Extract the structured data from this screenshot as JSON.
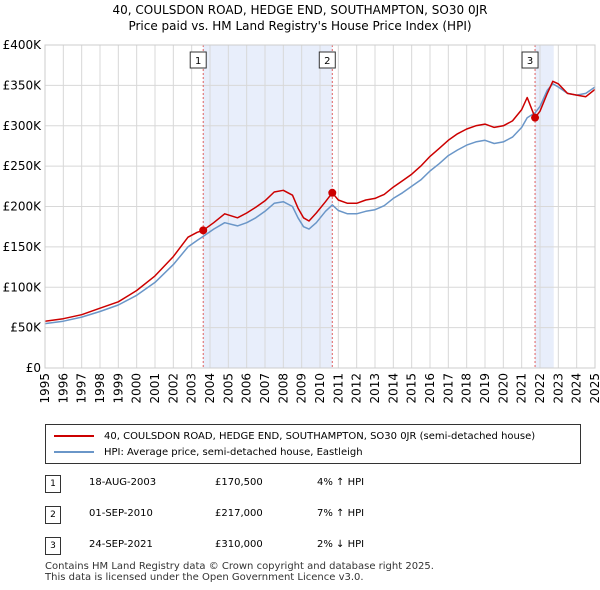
{
  "header": {
    "title": "40, COULSDON ROAD, HEDGE END, SOUTHAMPTON, SO30 0JR",
    "subtitle": "Price paid vs. HM Land Registry's House Price Index (HPI)"
  },
  "chart_data": {
    "type": "line",
    "title": "40, COULSDON ROAD, HEDGE END, SOUTHAMPTON, SO30 0JR",
    "subtitle": "Price paid vs. HM Land Registry's House Price Index (HPI)",
    "xlim": [
      1995,
      2025
    ],
    "ylim": [
      0,
      400000
    ],
    "y_ticks": [
      0,
      50000,
      100000,
      150000,
      200000,
      250000,
      300000,
      350000,
      400000
    ],
    "y_tick_labels": [
      "£0",
      "£50K",
      "£100K",
      "£150K",
      "£200K",
      "£250K",
      "£300K",
      "£350K",
      "£400K"
    ],
    "x_ticks": [
      "1995",
      "1996",
      "1997",
      "1998",
      "1999",
      "2000",
      "2001",
      "2002",
      "2003",
      "2004",
      "2005",
      "2006",
      "2007",
      "2008",
      "2009",
      "2010",
      "2011",
      "2012",
      "2013",
      "2014",
      "2015",
      "2016",
      "2017",
      "2018",
      "2019",
      "2020",
      "2021",
      "2022",
      "2023",
      "2024",
      "2025"
    ],
    "grid": true,
    "colors": {
      "price": "#cc0000",
      "hpi": "#6a96c8",
      "shade": "#e8eefb",
      "vline": "#e06060"
    },
    "series": [
      {
        "name": "40, COULSDON ROAD, HEDGE END, SOUTHAMPTON, SO30 0JR (semi-detached house)",
        "color": "#cc0000",
        "points": [
          [
            1995.0,
            58000
          ],
          [
            1996.0,
            61000
          ],
          [
            1997.0,
            66000
          ],
          [
            1998.0,
            74000
          ],
          [
            1999.0,
            82000
          ],
          [
            2000.0,
            96000
          ],
          [
            2001.0,
            114000
          ],
          [
            2002.0,
            138000
          ],
          [
            2002.8,
            162000
          ],
          [
            2003.3,
            168000
          ],
          [
            2003.63,
            170500
          ],
          [
            2004.2,
            180000
          ],
          [
            2004.8,
            191000
          ],
          [
            2005.5,
            186000
          ],
          [
            2006.0,
            192000
          ],
          [
            2006.5,
            199000
          ],
          [
            2007.0,
            207000
          ],
          [
            2007.5,
            218000
          ],
          [
            2008.0,
            220000
          ],
          [
            2008.5,
            214000
          ],
          [
            2008.8,
            198000
          ],
          [
            2009.1,
            186000
          ],
          [
            2009.4,
            182000
          ],
          [
            2009.8,
            192000
          ],
          [
            2010.3,
            206000
          ],
          [
            2010.67,
            217000
          ],
          [
            2011.0,
            208000
          ],
          [
            2011.5,
            204000
          ],
          [
            2012.0,
            204000
          ],
          [
            2012.5,
            208000
          ],
          [
            2013.0,
            210000
          ],
          [
            2013.5,
            215000
          ],
          [
            2014.0,
            224000
          ],
          [
            2014.5,
            232000
          ],
          [
            2015.0,
            240000
          ],
          [
            2015.5,
            250000
          ],
          [
            2016.0,
            262000
          ],
          [
            2016.5,
            272000
          ],
          [
            2017.0,
            282000
          ],
          [
            2017.5,
            290000
          ],
          [
            2018.0,
            296000
          ],
          [
            2018.5,
            300000
          ],
          [
            2019.0,
            302000
          ],
          [
            2019.5,
            298000
          ],
          [
            2020.0,
            300000
          ],
          [
            2020.5,
            306000
          ],
          [
            2021.0,
            320000
          ],
          [
            2021.3,
            335000
          ],
          [
            2021.73,
            310000
          ],
          [
            2022.0,
            318000
          ],
          [
            2022.4,
            340000
          ],
          [
            2022.7,
            355000
          ],
          [
            2023.0,
            352000
          ],
          [
            2023.5,
            340000
          ],
          [
            2024.0,
            338000
          ],
          [
            2024.5,
            336000
          ],
          [
            2025.0,
            345000
          ]
        ]
      },
      {
        "name": "HPI: Average price, semi-detached house, Eastleigh",
        "color": "#6a96c8",
        "points": [
          [
            1995.0,
            55000
          ],
          [
            1996.0,
            58000
          ],
          [
            1997.0,
            63000
          ],
          [
            1998.0,
            70000
          ],
          [
            1999.0,
            78000
          ],
          [
            2000.0,
            90000
          ],
          [
            2001.0,
            106000
          ],
          [
            2002.0,
            128000
          ],
          [
            2002.8,
            150000
          ],
          [
            2003.3,
            158000
          ],
          [
            2003.63,
            163000
          ],
          [
            2004.2,
            172000
          ],
          [
            2004.8,
            180000
          ],
          [
            2005.5,
            176000
          ],
          [
            2006.0,
            180000
          ],
          [
            2006.5,
            186000
          ],
          [
            2007.0,
            194000
          ],
          [
            2007.5,
            204000
          ],
          [
            2008.0,
            206000
          ],
          [
            2008.5,
            200000
          ],
          [
            2008.8,
            186000
          ],
          [
            2009.1,
            175000
          ],
          [
            2009.4,
            172000
          ],
          [
            2009.8,
            180000
          ],
          [
            2010.3,
            194000
          ],
          [
            2010.67,
            202000
          ],
          [
            2011.0,
            195000
          ],
          [
            2011.5,
            191000
          ],
          [
            2012.0,
            191000
          ],
          [
            2012.5,
            194000
          ],
          [
            2013.0,
            196000
          ],
          [
            2013.5,
            201000
          ],
          [
            2014.0,
            210000
          ],
          [
            2014.5,
            217000
          ],
          [
            2015.0,
            225000
          ],
          [
            2015.5,
            233000
          ],
          [
            2016.0,
            244000
          ],
          [
            2016.5,
            253000
          ],
          [
            2017.0,
            263000
          ],
          [
            2017.5,
            270000
          ],
          [
            2018.0,
            276000
          ],
          [
            2018.5,
            280000
          ],
          [
            2019.0,
            282000
          ],
          [
            2019.5,
            278000
          ],
          [
            2020.0,
            280000
          ],
          [
            2020.5,
            286000
          ],
          [
            2021.0,
            298000
          ],
          [
            2021.3,
            310000
          ],
          [
            2021.73,
            316000
          ],
          [
            2022.0,
            324000
          ],
          [
            2022.4,
            344000
          ],
          [
            2022.7,
            352000
          ],
          [
            2023.0,
            348000
          ],
          [
            2023.5,
            340000
          ],
          [
            2024.0,
            338000
          ],
          [
            2024.5,
            340000
          ],
          [
            2025.0,
            348000
          ]
        ]
      }
    ],
    "sales": [
      {
        "label": "1",
        "x": 2003.63,
        "y": 170500
      },
      {
        "label": "2",
        "x": 2010.67,
        "y": 217000
      },
      {
        "label": "3",
        "x": 2021.73,
        "y": 310000
      }
    ],
    "shaded_ranges": [
      [
        2003.63,
        2010.67
      ],
      [
        2021.73,
        2022.75
      ]
    ]
  },
  "legend": {
    "price_label": "40, COULSDON ROAD, HEDGE END, SOUTHAMPTON, SO30 0JR (semi-detached house)",
    "hpi_label": "HPI: Average price, semi-detached house, Eastleigh"
  },
  "transactions": [
    {
      "num": "1",
      "date": "18-AUG-2003",
      "price": "£170,500",
      "hpi": "4% ↑ HPI"
    },
    {
      "num": "2",
      "date": "01-SEP-2010",
      "price": "£217,000",
      "hpi": "7% ↑ HPI"
    },
    {
      "num": "3",
      "date": "24-SEP-2021",
      "price": "£310,000",
      "hpi": "2% ↓ HPI"
    }
  ],
  "footer": {
    "line1": "Contains HM Land Registry data © Crown copyright and database right 2025.",
    "line2": "This data is licensed under the Open Government Licence v3.0."
  }
}
